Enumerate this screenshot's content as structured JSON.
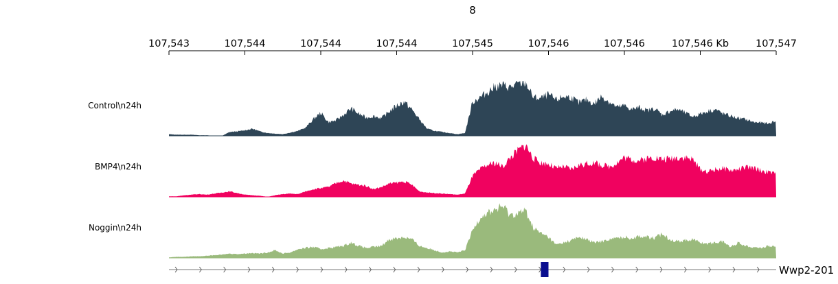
{
  "chart_data": {
    "type": "area",
    "title": "8",
    "x_tick_labels": [
      "107,543",
      "107,544",
      "107,544",
      "107,544",
      "107,545",
      "107,546",
      "107,546",
      "107,546 Kb",
      "107,547"
    ],
    "x_range_kb": [
      107543.0,
      107547.0
    ],
    "tracks": [
      {
        "name": "Control\\n24h",
        "color": "#2e4556",
        "x_kb": [
          107543.0,
          107543.05,
          107543.1,
          107543.15,
          107543.2,
          107543.25,
          107543.3,
          107543.35,
          107543.4,
          107543.45,
          107543.5,
          107543.55,
          107543.6,
          107543.65,
          107543.7,
          107543.75,
          107543.8,
          107543.85,
          107543.9,
          107543.95,
          107544.0,
          107544.05,
          107544.1,
          107544.15,
          107544.2,
          107544.25,
          107544.3,
          107544.35,
          107544.4,
          107544.45,
          107544.5,
          107544.55,
          107544.6,
          107544.65,
          107544.7,
          107544.75,
          107544.8,
          107544.85,
          107544.9,
          107544.95,
          107545.0,
          107545.05,
          107545.1,
          107545.15,
          107545.2,
          107545.25,
          107545.3,
          107545.35,
          107545.4,
          107545.45,
          107545.5,
          107545.55,
          107545.6,
          107545.65,
          107545.7,
          107545.75,
          107545.8,
          107545.85,
          107545.9,
          107545.95,
          107546.0,
          107546.05,
          107546.1,
          107546.15,
          107546.2,
          107546.25,
          107546.3,
          107546.35,
          107546.4,
          107546.45,
          107546.5,
          107546.55,
          107546.6,
          107546.65,
          107546.7,
          107546.75,
          107546.8,
          107546.85,
          107546.9,
          107546.95,
          107547.0
        ],
        "values": [
          0.03,
          0.02,
          0.02,
          0.02,
          0.01,
          0.01,
          0.0,
          0.0,
          0.07,
          0.08,
          0.1,
          0.13,
          0.08,
          0.05,
          0.04,
          0.03,
          0.06,
          0.09,
          0.15,
          0.3,
          0.42,
          0.25,
          0.28,
          0.38,
          0.5,
          0.4,
          0.33,
          0.36,
          0.32,
          0.44,
          0.55,
          0.62,
          0.48,
          0.3,
          0.13,
          0.09,
          0.07,
          0.05,
          0.03,
          0.05,
          0.62,
          0.7,
          0.8,
          0.9,
          0.92,
          0.88,
          0.95,
          0.97,
          0.7,
          0.68,
          0.75,
          0.65,
          0.72,
          0.7,
          0.6,
          0.66,
          0.58,
          0.72,
          0.62,
          0.52,
          0.55,
          0.48,
          0.52,
          0.46,
          0.5,
          0.38,
          0.45,
          0.48,
          0.42,
          0.35,
          0.4,
          0.45,
          0.48,
          0.4,
          0.36,
          0.32,
          0.3,
          0.25,
          0.24,
          0.22,
          0.28
        ],
        "ylim": [
          0,
          1
        ]
      },
      {
        "name": "BMP4\\n24h",
        "color": "#f0025f",
        "x_kb": [
          107543.0,
          107543.05,
          107543.1,
          107543.15,
          107543.2,
          107543.25,
          107543.3,
          107543.35,
          107543.4,
          107543.45,
          107543.5,
          107543.55,
          107543.6,
          107543.65,
          107543.7,
          107543.75,
          107543.8,
          107543.85,
          107543.9,
          107543.95,
          107544.0,
          107544.05,
          107544.1,
          107544.15,
          107544.2,
          107544.25,
          107544.3,
          107544.35,
          107544.4,
          107544.45,
          107544.5,
          107544.55,
          107544.6,
          107544.65,
          107544.7,
          107544.75,
          107544.8,
          107544.85,
          107544.9,
          107544.95,
          107545.0,
          107545.05,
          107545.1,
          107545.15,
          107545.2,
          107545.25,
          107545.3,
          107545.35,
          107545.4,
          107545.45,
          107545.5,
          107545.55,
          107545.6,
          107545.65,
          107545.7,
          107545.75,
          107545.8,
          107545.85,
          107545.9,
          107545.95,
          107546.0,
          107546.05,
          107546.1,
          107546.15,
          107546.2,
          107546.25,
          107546.3,
          107546.35,
          107546.4,
          107546.45,
          107546.5,
          107546.55,
          107546.6,
          107546.65,
          107546.7,
          107546.75,
          107546.8,
          107546.85,
          107546.9,
          107546.95,
          107547.0
        ],
        "values": [
          0.01,
          0.01,
          0.03,
          0.04,
          0.05,
          0.04,
          0.06,
          0.08,
          0.1,
          0.07,
          0.04,
          0.03,
          0.02,
          0.0,
          0.03,
          0.05,
          0.06,
          0.05,
          0.1,
          0.14,
          0.16,
          0.18,
          0.25,
          0.3,
          0.24,
          0.22,
          0.2,
          0.14,
          0.18,
          0.24,
          0.26,
          0.28,
          0.22,
          0.1,
          0.08,
          0.07,
          0.06,
          0.05,
          0.04,
          0.06,
          0.38,
          0.5,
          0.58,
          0.62,
          0.55,
          0.72,
          0.85,
          0.95,
          0.7,
          0.62,
          0.6,
          0.52,
          0.55,
          0.5,
          0.58,
          0.6,
          0.62,
          0.58,
          0.55,
          0.62,
          0.72,
          0.68,
          0.66,
          0.7,
          0.72,
          0.68,
          0.7,
          0.72,
          0.72,
          0.68,
          0.5,
          0.46,
          0.5,
          0.52,
          0.48,
          0.5,
          0.54,
          0.52,
          0.48,
          0.45,
          0.42
        ],
        "ylim": [
          0,
          1
        ]
      },
      {
        "name": "Noggin\\n24h",
        "color": "#9aba7c",
        "x_kb": [
          107543.0,
          107543.05,
          107543.1,
          107543.15,
          107543.2,
          107543.25,
          107543.3,
          107543.35,
          107543.4,
          107543.45,
          107543.5,
          107543.55,
          107543.6,
          107543.65,
          107543.7,
          107543.75,
          107543.8,
          107543.85,
          107543.9,
          107543.95,
          107544.0,
          107544.05,
          107544.1,
          107544.15,
          107544.2,
          107544.25,
          107544.3,
          107544.35,
          107544.4,
          107544.45,
          107544.5,
          107544.55,
          107544.6,
          107544.65,
          107544.7,
          107544.75,
          107544.8,
          107544.85,
          107544.9,
          107544.95,
          107545.0,
          107545.05,
          107545.1,
          107545.15,
          107545.2,
          107545.25,
          107545.3,
          107545.35,
          107545.4,
          107545.45,
          107545.5,
          107545.55,
          107545.6,
          107545.65,
          107545.7,
          107545.75,
          107545.8,
          107545.85,
          107545.9,
          107545.95,
          107546.0,
          107546.05,
          107546.1,
          107546.15,
          107546.2,
          107546.25,
          107546.3,
          107546.35,
          107546.4,
          107546.45,
          107546.5,
          107546.55,
          107546.6,
          107546.65,
          107546.7,
          107546.75,
          107546.8,
          107546.85,
          107546.9,
          107546.95,
          107547.0
        ],
        "values": [
          0.01,
          0.02,
          0.02,
          0.03,
          0.03,
          0.04,
          0.05,
          0.06,
          0.08,
          0.07,
          0.08,
          0.09,
          0.08,
          0.1,
          0.14,
          0.08,
          0.1,
          0.16,
          0.18,
          0.2,
          0.16,
          0.18,
          0.2,
          0.22,
          0.28,
          0.22,
          0.18,
          0.2,
          0.22,
          0.34,
          0.36,
          0.38,
          0.34,
          0.22,
          0.18,
          0.14,
          0.1,
          0.12,
          0.1,
          0.14,
          0.5,
          0.75,
          0.82,
          0.88,
          0.94,
          0.78,
          0.82,
          0.86,
          0.55,
          0.45,
          0.38,
          0.24,
          0.28,
          0.32,
          0.38,
          0.34,
          0.28,
          0.3,
          0.34,
          0.36,
          0.38,
          0.36,
          0.4,
          0.38,
          0.36,
          0.44,
          0.34,
          0.3,
          0.32,
          0.34,
          0.28,
          0.26,
          0.28,
          0.3,
          0.2,
          0.28,
          0.22,
          0.2,
          0.18,
          0.22,
          0.2
        ],
        "ylim": [
          0,
          1
        ]
      }
    ],
    "gene": {
      "name": "Wwp2-201",
      "strand": "+",
      "color": "#0a0e8f",
      "exon_kb": [
        107545.45,
        107545.5
      ]
    }
  }
}
